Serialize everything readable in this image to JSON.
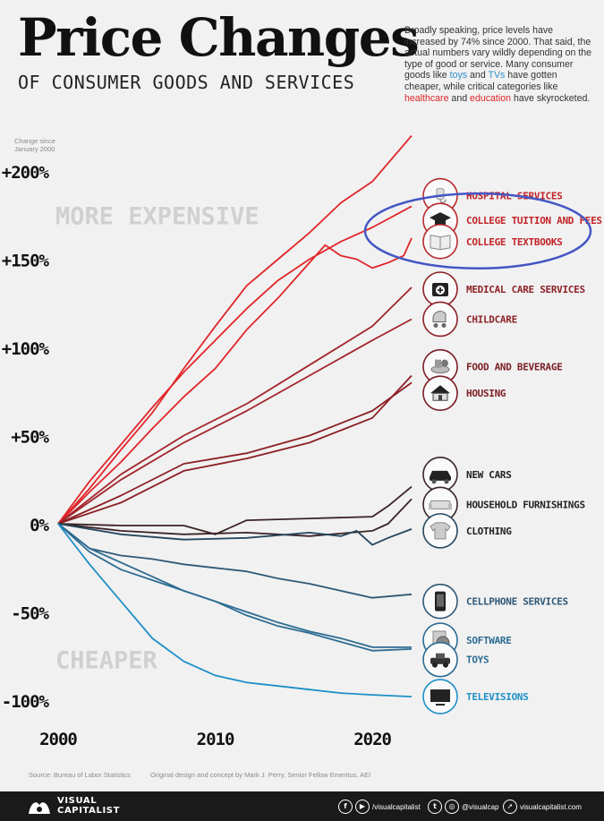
{
  "header": {
    "title": "Price Changes",
    "subtitle": "OF CONSUMER GOODS AND SERVICES",
    "description": [
      {
        "text": "Broadly speaking, price levels have increased by 74% since 2000. That said, the actual numbers vary wildly depending on the type of good or service. Many consumer goods like ",
        "color": ""
      },
      {
        "text": "toys",
        "color": "blue"
      },
      {
        "text": " and ",
        "color": ""
      },
      {
        "text": "TVs",
        "color": "blue"
      },
      {
        "text": " have gotten cheaper, while critical categories like ",
        "color": ""
      },
      {
        "text": "healthcare",
        "color": "red"
      },
      {
        "text": " and ",
        "color": ""
      },
      {
        "text": "education",
        "color": "red"
      },
      {
        "text": " have skyrocketed.",
        "color": ""
      }
    ]
  },
  "chart_data": {
    "type": "line",
    "ylabel": "Change since January 2000",
    "ylabel_lines": [
      "Change since",
      "January 2000"
    ],
    "xlim": [
      2000,
      2022.5
    ],
    "ylim": [
      -105,
      220
    ],
    "x_ticks": [
      2000,
      2010,
      2020
    ],
    "x_tick_labels": [
      "2000",
      "2010",
      "2020"
    ],
    "y_ticks": [
      200,
      150,
      100,
      50,
      0,
      -50,
      -100
    ],
    "y_tick_labels": [
      "+200%",
      "+150%",
      "+100%",
      "+50%",
      "0%",
      "-50%",
      "-100%"
    ],
    "grid": false,
    "region_labels": [
      {
        "text": "MORE EXPENSIVE",
        "y": 175
      },
      {
        "text": "CHEAPER",
        "y": -77
      }
    ],
    "series": [
      {
        "name": "HOSPITAL SERVICES",
        "color": "#e0262a",
        "x": [
          2000,
          2002,
          2004,
          2006,
          2008,
          2010,
          2012,
          2014,
          2016,
          2018,
          2020,
          2022.5
        ],
        "values": [
          0,
          20,
          42,
          63,
          88,
          112,
          135,
          150,
          165,
          182,
          194,
          220
        ]
      },
      {
        "name": "COLLEGE TUITION AND FEES",
        "color": "#e0262a",
        "x": [
          2000,
          2002,
          2004,
          2006,
          2008,
          2010,
          2012,
          2014,
          2016,
          2018,
          2020,
          2022.5
        ],
        "values": [
          0,
          24,
          45,
          66,
          86,
          104,
          122,
          138,
          150,
          160,
          168,
          180
        ]
      },
      {
        "name": "COLLEGE TEXTBOOKS",
        "color": "#e0262a",
        "x": [
          2000,
          2002,
          2004,
          2006,
          2008,
          2010,
          2012,
          2014,
          2016,
          2017,
          2018,
          2019,
          2020,
          2021,
          2022,
          2022.5
        ],
        "values": [
          0,
          18,
          35,
          54,
          72,
          88,
          110,
          128,
          148,
          158,
          152,
          150,
          145,
          148,
          152,
          162
        ]
      },
      {
        "name": "MEDICAL CARE SERVICES",
        "color": "#a3242a",
        "x": [
          2000,
          2004,
          2008,
          2012,
          2016,
          2020,
          2022.5
        ],
        "values": [
          0,
          28,
          50,
          68,
          90,
          112,
          134
        ]
      },
      {
        "name": "CHILDCARE",
        "color": "#a3242a",
        "x": [
          2000,
          2004,
          2008,
          2012,
          2016,
          2020,
          2022.5
        ],
        "values": [
          0,
          25,
          46,
          64,
          84,
          104,
          116
        ]
      },
      {
        "name": "FOOD AND BEVERAGE",
        "color": "#8b1f24",
        "x": [
          2000,
          2004,
          2008,
          2012,
          2016,
          2020,
          2022.5
        ],
        "values": [
          0,
          12,
          30,
          37,
          46,
          60,
          84
        ]
      },
      {
        "name": "HOUSING",
        "color": "#8b1f24",
        "x": [
          2000,
          2004,
          2008,
          2012,
          2016,
          2020,
          2022.5
        ],
        "values": [
          0,
          16,
          34,
          40,
          50,
          64,
          80
        ]
      },
      {
        "name": "NEW CARS",
        "color": "#3b2326",
        "x": [
          2000,
          2004,
          2008,
          2010,
          2012,
          2016,
          2020,
          2021,
          2022.5
        ],
        "values": [
          0,
          -1,
          -1,
          -6,
          2,
          3,
          4,
          10,
          21
        ]
      },
      {
        "name": "HOUSEHOLD FURNISHINGS",
        "color": "#3b2326",
        "x": [
          2000,
          2004,
          2008,
          2012,
          2016,
          2020,
          2021,
          2022.5
        ],
        "values": [
          0,
          -4,
          -6,
          -5,
          -7,
          -4,
          0,
          14
        ]
      },
      {
        "name": "CLOTHING",
        "color": "#24475e",
        "x": [
          2000,
          2004,
          2008,
          2012,
          2016,
          2018,
          2019,
          2020,
          2021,
          2022.5
        ],
        "values": [
          0,
          -6,
          -9,
          -8,
          -5,
          -7,
          -4,
          -12,
          -8,
          -3
        ]
      },
      {
        "name": "CELLPHONE SERVICES",
        "color": "#2f5876",
        "x": [
          2000,
          2002,
          2004,
          2006,
          2008,
          2010,
          2012,
          2014,
          2016,
          2018,
          2020,
          2022.5
        ],
        "values": [
          0,
          -14,
          -18,
          -20,
          -23,
          -25,
          -27,
          -31,
          -34,
          -38,
          -42,
          -40
        ]
      },
      {
        "name": "SOFTWARE",
        "color": "#2c6c92",
        "x": [
          2000,
          2002,
          2004,
          2006,
          2008,
          2010,
          2012,
          2014,
          2016,
          2018,
          2020,
          2022.5
        ],
        "values": [
          0,
          -16,
          -26,
          -32,
          -38,
          -44,
          -50,
          -56,
          -61,
          -65,
          -70,
          -70
        ]
      },
      {
        "name": "TOYS",
        "color": "#2c6c92",
        "x": [
          2000,
          2002,
          2004,
          2006,
          2008,
          2010,
          2012,
          2014,
          2016,
          2018,
          2020,
          2022.5
        ],
        "values": [
          0,
          -14,
          -22,
          -30,
          -38,
          -44,
          -52,
          -58,
          -62,
          -67,
          -72,
          -71
        ]
      },
      {
        "name": "TELEVISIONS",
        "color": "#1f8fc7",
        "x": [
          2000,
          2002,
          2004,
          2006,
          2008,
          2010,
          2012,
          2014,
          2016,
          2018,
          2020,
          2022.5
        ],
        "values": [
          0,
          -23,
          -44,
          -65,
          -78,
          -86,
          -90,
          -92,
          -94,
          -96,
          -97,
          -98
        ]
      }
    ],
    "legend": [
      {
        "series": "HOSPITAL SERVICES",
        "icon": "hospital-bed-icon",
        "ring": "#b82a2e",
        "text": "#c22328",
        "y": 186
      },
      {
        "series": "COLLEGE TUITION AND FEES",
        "icon": "graduation-cap-icon",
        "ring": "#b82a2e",
        "text": "#c22328",
        "y": 172
      },
      {
        "series": "COLLEGE TEXTBOOKS",
        "icon": "book-icon",
        "ring": "#b82a2e",
        "text": "#c22328",
        "y": 160
      },
      {
        "series": "MEDICAL CARE SERVICES",
        "icon": "first-aid-kit-icon",
        "ring": "#8d2227",
        "text": "#8d2227",
        "y": 133
      },
      {
        "series": "CHILDCARE",
        "icon": "stroller-icon",
        "ring": "#8d2227",
        "text": "#8d2227",
        "y": 116
      },
      {
        "series": "FOOD AND BEVERAGE",
        "icon": "food-icon",
        "ring": "#7a1e23",
        "text": "#7a1e23",
        "y": 89
      },
      {
        "series": "HOUSING",
        "icon": "house-icon",
        "ring": "#7a1e23",
        "text": "#7a1e23",
        "y": 74
      },
      {
        "series": "NEW CARS",
        "icon": "car-icon",
        "ring": "#3a2528",
        "text": "#222222",
        "y": 28
      },
      {
        "series": "HOUSEHOLD FURNISHINGS",
        "icon": "sofa-icon",
        "ring": "#3a2528",
        "text": "#222222",
        "y": 11
      },
      {
        "series": "CLOTHING",
        "icon": "shirt-icon",
        "ring": "#26485f",
        "text": "#222222",
        "y": -4
      },
      {
        "series": "CELLPHONE SERVICES",
        "icon": "cellphone-icon",
        "ring": "#2f5876",
        "text": "#2f5876",
        "y": -44
      },
      {
        "series": "SOFTWARE",
        "icon": "software-disc-icon",
        "ring": "#2c6c92",
        "text": "#2c6c92",
        "y": -66
      },
      {
        "series": "TOYS",
        "icon": "toy-car-icon",
        "ring": "#2c6c92",
        "text": "#2c6c92",
        "y": -77
      },
      {
        "series": "TELEVISIONS",
        "icon": "television-icon",
        "ring": "#1f8fc7",
        "text": "#1f8fc7",
        "y": -98
      }
    ],
    "highlight": {
      "color": "#4456c4",
      "around": [
        "COLLEGE TUITION AND FEES",
        "COLLEGE TEXTBOOKS"
      ]
    }
  },
  "source": {
    "source_text": "Source: Bureau of Labor Statistics",
    "credit_text": "Original design and concept by Mark J. Perry, Senior Fellow Emeritus, AEI"
  },
  "footer": {
    "logo_text": "VISUAL\nCAPITALIST",
    "facebook_icon": "f",
    "youtube_icon": "▶",
    "social_handle_1": "/visualcapitalist",
    "twitter_icon": "t",
    "instagram_icon": "◎",
    "social_handle_2": "@visualcap",
    "web_icon": "➚",
    "website": "visualcapitalist.com"
  },
  "colors": {
    "background": "#f1f1f1",
    "footer": "#1a1a1a"
  }
}
